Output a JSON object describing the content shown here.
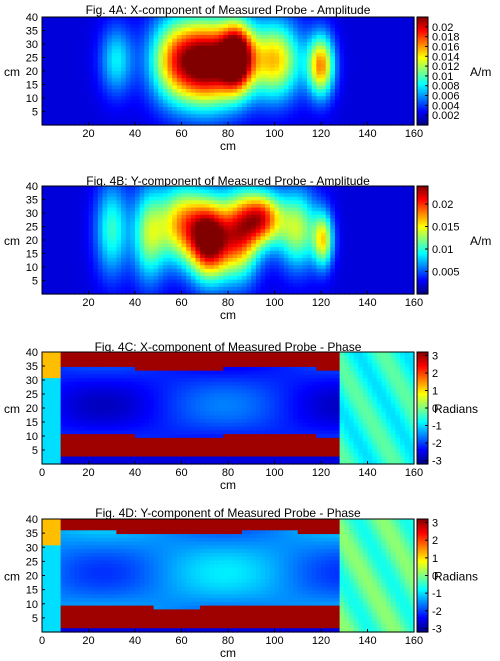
{
  "chart_data": [
    {
      "type": "heatmap",
      "title": "Fig. 4A: X-component of Measured Probe - Amplitude",
      "xlabel": "cm",
      "ylabel": "cm",
      "xlim": [
        0,
        160
      ],
      "ylim": [
        0,
        40
      ],
      "xticks": [
        20,
        40,
        60,
        80,
        100,
        120,
        140,
        160
      ],
      "yticks": [
        5,
        10,
        15,
        20,
        25,
        30,
        35,
        40
      ],
      "colorbar_label": "A/m",
      "colorbar_range": [
        0,
        0.022
      ],
      "colorbar_ticks": [
        "0.002",
        "0.004",
        "0.006",
        "0.008",
        "0.01",
        "0.012",
        "0.014",
        "0.016",
        "0.018",
        "0.02"
      ],
      "colormap": "jet",
      "blobs": [
        {
          "x": 32,
          "y": 24,
          "sx": 5,
          "sy": 9,
          "value": 0.006
        },
        {
          "x": 57,
          "y": 24,
          "sx": 8,
          "sy": 11,
          "value": 0.012
        },
        {
          "x": 72,
          "y": 23,
          "sx": 9,
          "sy": 11,
          "value": 0.02
        },
        {
          "x": 84,
          "y": 25,
          "sx": 5,
          "sy": 9,
          "value": 0.018
        },
        {
          "x": 100,
          "y": 24,
          "sx": 8,
          "sy": 10,
          "value": 0.013
        },
        {
          "x": 120,
          "y": 22,
          "sx": 4,
          "sy": 8,
          "value": 0.014
        }
      ]
    },
    {
      "type": "heatmap",
      "title": "Fig. 4B: Y-component of Measured Probe - Amplitude",
      "xlabel": "cm",
      "ylabel": "cm",
      "xlim": [
        0,
        160
      ],
      "ylim": [
        0,
        40
      ],
      "xticks": [
        20,
        40,
        60,
        80,
        100,
        120,
        140,
        160
      ],
      "yticks": [
        5,
        10,
        15,
        20,
        25,
        30,
        35,
        40
      ],
      "colorbar_label": "A/m",
      "colorbar_range": [
        0,
        0.024
      ],
      "colorbar_ticks": [
        "0.005",
        "0.01",
        "0.015",
        "0.02"
      ],
      "colormap": "jet",
      "blobs": [
        {
          "x": 30,
          "y": 24,
          "sx": 5,
          "sy": 12,
          "value": 0.008
        },
        {
          "x": 46,
          "y": 22,
          "sx": 5,
          "sy": 12,
          "value": 0.01
        },
        {
          "x": 60,
          "y": 26,
          "sx": 7,
          "sy": 10,
          "value": 0.014
        },
        {
          "x": 72,
          "y": 20,
          "sx": 6,
          "sy": 10,
          "value": 0.022
        },
        {
          "x": 85,
          "y": 22,
          "sx": 6,
          "sy": 11,
          "value": 0.016
        },
        {
          "x": 95,
          "y": 28,
          "sx": 6,
          "sy": 7,
          "value": 0.016
        },
        {
          "x": 110,
          "y": 24,
          "sx": 6,
          "sy": 10,
          "value": 0.011
        },
        {
          "x": 121,
          "y": 20,
          "sx": 3,
          "sy": 7,
          "value": 0.012
        }
      ]
    },
    {
      "type": "heatmap",
      "title": "Fig. 4C: X-component of Measured Probe - Phase",
      "xlabel": "cm",
      "ylabel": "cm",
      "xlim": [
        0,
        160
      ],
      "ylim": [
        0,
        40
      ],
      "xticks": [
        0,
        20,
        40,
        60,
        80,
        100,
        120,
        140,
        160
      ],
      "yticks": [
        5,
        10,
        15,
        20,
        25,
        30,
        35,
        40
      ],
      "colorbar_label": "Radians",
      "colorbar_range": [
        -3.2,
        3.2
      ],
      "colorbar_ticks": [
        "-3",
        "-2",
        "-1",
        "0",
        "1",
        "2",
        "3"
      ],
      "colormap": "jet",
      "regions": {
        "band_x": [
          8,
          128
        ],
        "top_band_y": [
          34,
          40
        ],
        "bottom_band_y": [
          4,
          10
        ],
        "core_value": -2.2,
        "band_value": 3.0,
        "right_region_x": [
          128,
          160
        ],
        "right_region_value": -0.6
      }
    },
    {
      "type": "heatmap",
      "title": "Fig. 4D: Y-component of Measured Probe - Phase",
      "xlabel": "cm",
      "ylabel": "cm",
      "xlim": [
        0,
        160
      ],
      "ylim": [
        0,
        40
      ],
      "xticks": [
        0,
        20,
        40,
        60,
        80,
        100,
        120,
        140,
        160
      ],
      "yticks": [
        5,
        10,
        15,
        20,
        25,
        30,
        35,
        40
      ],
      "colorbar_label": "Radians",
      "colorbar_range": [
        -3.2,
        3.2
      ],
      "colorbar_ticks": [
        "-3",
        "-2",
        "-1",
        "0",
        "1",
        "2",
        "3"
      ],
      "colormap": "jet",
      "regions": {
        "band_x": [
          8,
          128
        ],
        "top_band_y": [
          35,
          40
        ],
        "bottom_band_y": [
          3,
          9
        ],
        "core_value": -1.5,
        "band_value": 3.0,
        "right_region_x": [
          128,
          160
        ],
        "right_region_value": -0.3
      }
    }
  ]
}
